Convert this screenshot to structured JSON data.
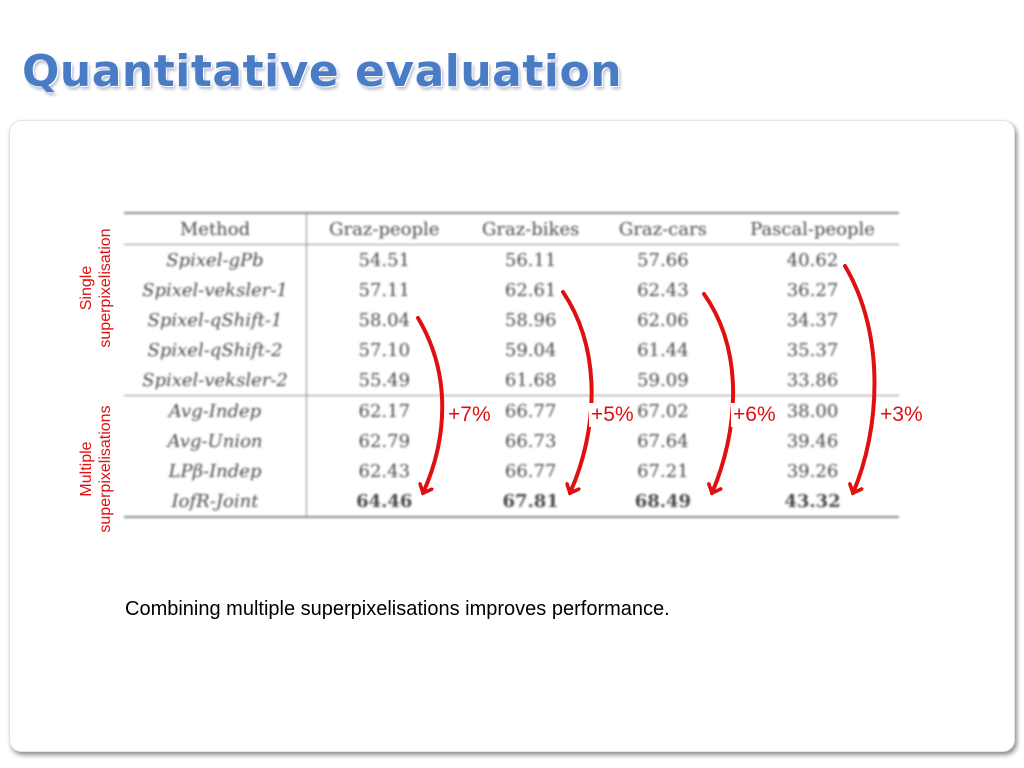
{
  "slide": {
    "title": "Quantitative evaluation",
    "caption": "Combining multiple superpixelisations improves performance."
  },
  "side_labels": {
    "single": [
      "Single",
      "superpixelisation"
    ],
    "multiple": [
      "Multiple",
      "superpixelisations"
    ]
  },
  "table": {
    "headers": [
      "Method",
      "Graz-people",
      "Graz-bikes",
      "Graz-cars",
      "Pascal-people"
    ],
    "single_rows": [
      {
        "method": "Spixel-gPb",
        "values": [
          "54.51",
          "56.11",
          "57.66",
          "40.62"
        ]
      },
      {
        "method": "Spixel-veksler-1",
        "values": [
          "57.11",
          "62.61",
          "62.43",
          "36.27"
        ]
      },
      {
        "method": "Spixel-qShift-1",
        "values": [
          "58.04",
          "58.96",
          "62.06",
          "34.37"
        ]
      },
      {
        "method": "Spixel-qShift-2",
        "values": [
          "57.10",
          "59.04",
          "61.44",
          "35.37"
        ]
      },
      {
        "method": "Spixel-veksler-2",
        "values": [
          "55.49",
          "61.68",
          "59.09",
          "33.86"
        ]
      }
    ],
    "multiple_rows": [
      {
        "method": "Avg-Indep",
        "values": [
          "62.17",
          "66.77",
          "67.02",
          "38.00"
        ]
      },
      {
        "method": "Avg-Union",
        "values": [
          "62.79",
          "66.73",
          "67.64",
          "39.46"
        ]
      },
      {
        "method": "LPβ-Indep",
        "values": [
          "62.43",
          "66.77",
          "67.21",
          "39.26"
        ]
      },
      {
        "method": "IofR-Joint",
        "values": [
          "64.46",
          "67.81",
          "68.49",
          "43.32"
        ],
        "best": true
      }
    ]
  },
  "improvements": [
    "+7%",
    "+5%",
    "+6%",
    "+3%"
  ],
  "colors": {
    "title": "#4a7cc6",
    "accent": "#e01010",
    "table_text": "#4a4a4a"
  }
}
